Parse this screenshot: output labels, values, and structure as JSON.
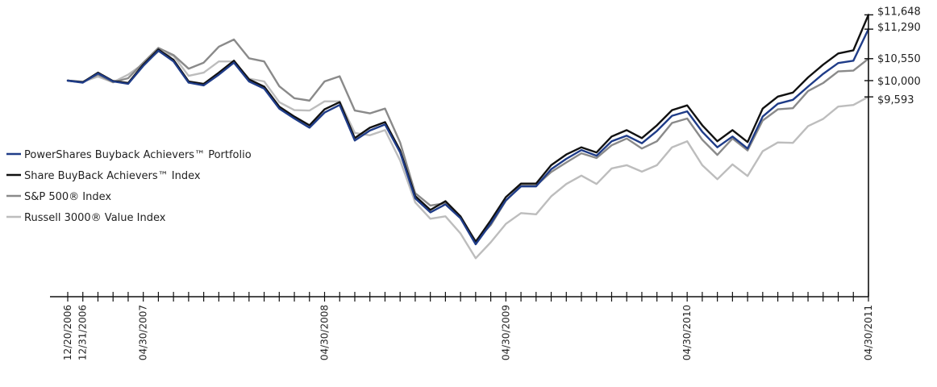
{
  "chart_data": {
    "type": "line",
    "title": "",
    "xlabel": "",
    "ylabel": "",
    "x": [
      "12/20/2006",
      "12/31/2006",
      "01/31/2007",
      "02/28/2007",
      "03/31/2007",
      "04/30/2007",
      "05/31/2007",
      "06/30/2007",
      "07/31/2007",
      "08/31/2007",
      "09/30/2007",
      "10/31/2007",
      "11/30/2007",
      "12/31/2007",
      "01/31/2008",
      "02/29/2008",
      "03/31/2008",
      "04/30/2008",
      "05/31/2008",
      "06/30/2008",
      "07/31/2008",
      "08/31/2008",
      "09/30/2008",
      "10/31/2008",
      "11/30/2008",
      "12/31/2008",
      "01/31/2009",
      "02/28/2009",
      "03/31/2009",
      "04/30/2009",
      "05/31/2009",
      "06/30/2009",
      "07/31/2009",
      "08/31/2009",
      "09/30/2009",
      "10/31/2009",
      "11/30/2009",
      "12/31/2009",
      "01/31/2010",
      "02/28/2010",
      "03/31/2010",
      "04/30/2010",
      "05/31/2010",
      "06/30/2010",
      "07/31/2010",
      "08/31/2010",
      "09/30/2010",
      "10/31/2010",
      "11/30/2010",
      "12/31/2010",
      "01/31/2011",
      "02/28/2011",
      "03/31/2011",
      "04/30/2011"
    ],
    "x_tick_labels": [
      "12/20/2006",
      "12/31/2006",
      "04/30/2007",
      "04/30/2008",
      "04/30/2009",
      "04/30/2010",
      "04/30/2011"
    ],
    "x_tick_label_index": [
      0,
      1,
      5,
      17,
      29,
      41,
      53
    ],
    "ylim": [
      5000,
      11900
    ],
    "y_end_labels": [
      "$11,648",
      "$11,290",
      "$10,550",
      "$10,000",
      "$9,593"
    ],
    "y_end_values": [
      11648,
      11290,
      10550,
      10000,
      9593
    ],
    "legend_position": "left",
    "series": [
      {
        "name": "PowerShares Buyback Achievers™ Portfolio",
        "color": "#1f3c88",
        "width": 2.4,
        "values": [
          10000,
          9950,
          10180,
          9980,
          9920,
          10370,
          10750,
          10480,
          9950,
          9880,
          10150,
          10450,
          9980,
          9800,
          9300,
          9050,
          8820,
          9200,
          9390,
          8500,
          8750,
          8900,
          8200,
          7050,
          6700,
          6900,
          6550,
          5900,
          6420,
          7000,
          7350,
          7350,
          7780,
          8040,
          8260,
          8120,
          8480,
          8620,
          8430,
          8740,
          9120,
          9230,
          8720,
          8330,
          8600,
          8300,
          9100,
          9420,
          9520,
          9850,
          10170,
          10440,
          10500,
          11290
        ]
      },
      {
        "name": "Share BuyBack Achievers™ Index",
        "color": "#111111",
        "width": 2.4,
        "values": [
          10000,
          9960,
          10200,
          9990,
          9940,
          10400,
          10780,
          10520,
          9980,
          9920,
          10200,
          10500,
          10030,
          9850,
          9350,
          9100,
          8880,
          9280,
          9460,
          8560,
          8820,
          8960,
          8250,
          7110,
          6760,
          6980,
          6600,
          5960,
          6500,
          7080,
          7420,
          7420,
          7880,
          8150,
          8330,
          8200,
          8600,
          8760,
          8560,
          8880,
          9260,
          9380,
          8880,
          8480,
          8760,
          8460,
          9300,
          9600,
          9700,
          10080,
          10400,
          10680,
          10760,
          11648
        ]
      },
      {
        "name": "S&P 500® Index",
        "color": "#8a8a8a",
        "width": 2.4,
        "values": [
          10000,
          9970,
          10150,
          9960,
          10060,
          10450,
          10820,
          10640,
          10300,
          10450,
          10850,
          11030,
          10560,
          10480,
          9860,
          9560,
          9500,
          9980,
          10110,
          9250,
          9180,
          9300,
          8450,
          7180,
          6870,
          6930,
          6560,
          5980,
          6380,
          6990,
          7370,
          7370,
          7710,
          7950,
          8180,
          8060,
          8380,
          8550,
          8300,
          8480,
          8940,
          9050,
          8520,
          8140,
          8550,
          8250,
          9000,
          9280,
          9310,
          9740,
          9940,
          10230,
          10250,
          10550
        ]
      },
      {
        "name": "Russell 3000® Value Index",
        "color": "#bdbdbd",
        "width": 2.4,
        "values": [
          10000,
          9970,
          10100,
          9960,
          10150,
          10420,
          10730,
          10620,
          10120,
          10200,
          10480,
          10480,
          10050,
          9980,
          9460,
          9260,
          9250,
          9480,
          9480,
          8690,
          8630,
          8760,
          8000,
          6950,
          6540,
          6600,
          6170,
          5550,
          5950,
          6410,
          6680,
          6650,
          7100,
          7410,
          7620,
          7410,
          7800,
          7880,
          7720,
          7880,
          8330,
          8480,
          7880,
          7530,
          7900,
          7610,
          8230,
          8450,
          8440,
          8860,
          9040,
          9350,
          9390,
          9593
        ]
      }
    ]
  }
}
